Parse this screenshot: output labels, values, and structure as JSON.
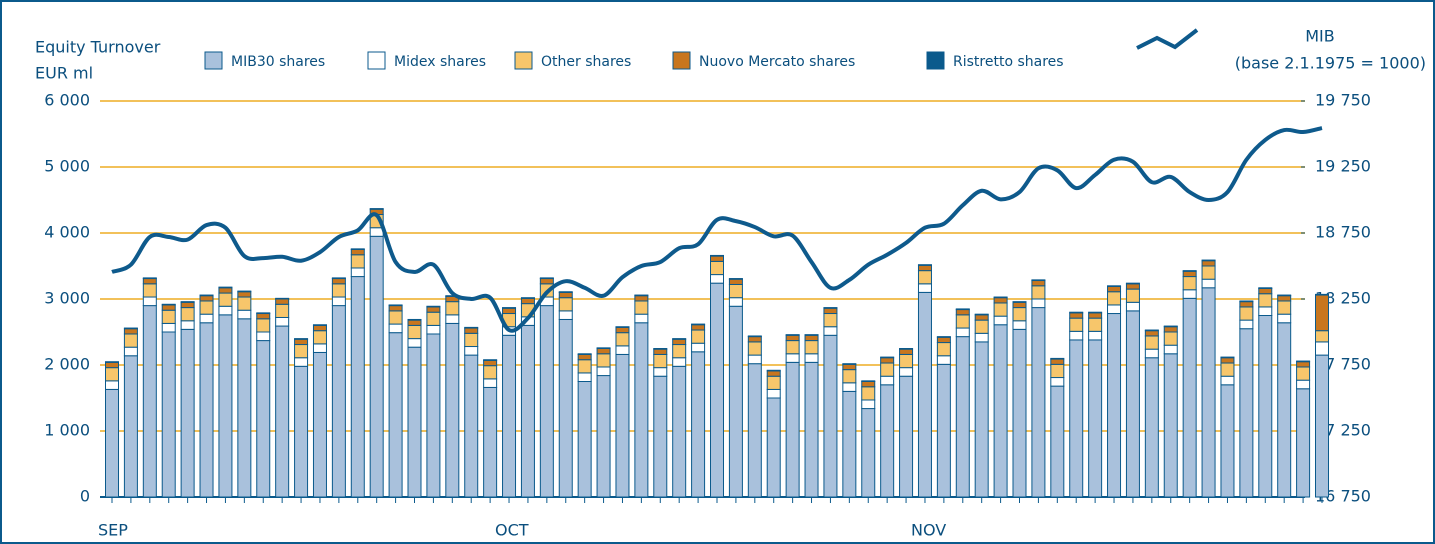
{
  "chart_data": {
    "type": "bar",
    "title": "Equity Turnover",
    "ylabel": "EUR ml",
    "subtitle": "(base 2.1.1975 = 1000)",
    "categories": [
      "SEP",
      null,
      null,
      null,
      null,
      null,
      null,
      null,
      null,
      null,
      null,
      null,
      null,
      null,
      null,
      null,
      null,
      null,
      null,
      null,
      null,
      "OCT",
      null,
      null,
      null,
      null,
      null,
      null,
      null,
      null,
      null,
      null,
      null,
      null,
      null,
      null,
      null,
      null,
      null,
      null,
      null,
      null,
      null,
      "NOV",
      null,
      null,
      null,
      null,
      null,
      null,
      null,
      null,
      null,
      null,
      null,
      null,
      null,
      null,
      null,
      null,
      null,
      null,
      null,
      null,
      null
    ],
    "series": [
      {
        "name": "MIB30 shares",
        "color": "#a9c1dc",
        "values": [
          1630,
          2140,
          2900,
          2500,
          2540,
          2640,
          2760,
          2700,
          2370,
          2590,
          1980,
          2190,
          2900,
          3340,
          3950,
          2490,
          2270,
          2470,
          2630,
          2150,
          1660,
          2450,
          2600,
          2900,
          2690,
          1750,
          1840,
          2160,
          2640,
          1830,
          1980,
          2200,
          3240,
          2890,
          2020,
          1500,
          2040,
          2040,
          2450,
          1600,
          1340,
          1700,
          1830,
          3100,
          2010,
          2430,
          2350,
          2610,
          2540,
          2870,
          1680,
          2380,
          2380,
          2780,
          2820,
          2110,
          2170,
          3010,
          3170,
          1700,
          2550,
          2750,
          2640,
          1640,
          2150
        ]
      },
      {
        "name": "Midex shares",
        "color": "#ffffff",
        "values": [
          130,
          130,
          130,
          130,
          130,
          130,
          130,
          130,
          130,
          130,
          130,
          130,
          130,
          130,
          130,
          130,
          130,
          130,
          130,
          130,
          130,
          130,
          130,
          130,
          130,
          130,
          130,
          130,
          130,
          130,
          130,
          130,
          130,
          130,
          130,
          130,
          130,
          130,
          130,
          130,
          130,
          130,
          130,
          130,
          130,
          130,
          130,
          130,
          130,
          130,
          130,
          130,
          130,
          130,
          130,
          130,
          130,
          130,
          130,
          130,
          130,
          130,
          130,
          130,
          200
        ]
      },
      {
        "name": "Other shares",
        "color": "#f7c66b",
        "values": [
          200,
          200,
          200,
          200,
          200,
          200,
          200,
          200,
          200,
          200,
          200,
          200,
          200,
          200,
          200,
          200,
          200,
          200,
          200,
          200,
          200,
          200,
          200,
          200,
          200,
          200,
          200,
          200,
          200,
          200,
          200,
          200,
          200,
          200,
          200,
          200,
          200,
          200,
          200,
          200,
          200,
          200,
          200,
          200,
          200,
          200,
          200,
          200,
          200,
          200,
          200,
          200,
          200,
          200,
          200,
          200,
          200,
          200,
          200,
          200,
          200,
          200,
          200,
          200,
          170
        ]
      },
      {
        "name": "Nuovo Mercato shares",
        "color": "#c8761e",
        "values": [
          80,
          80,
          80,
          80,
          80,
          80,
          80,
          80,
          80,
          80,
          80,
          80,
          80,
          80,
          80,
          80,
          80,
          80,
          80,
          80,
          80,
          80,
          80,
          80,
          80,
          80,
          80,
          80,
          80,
          80,
          80,
          80,
          80,
          80,
          80,
          80,
          80,
          80,
          80,
          80,
          80,
          80,
          80,
          80,
          80,
          80,
          80,
          80,
          80,
          80,
          80,
          80,
          80,
          80,
          80,
          80,
          80,
          80,
          80,
          80,
          80,
          80,
          80,
          80,
          540
        ]
      },
      {
        "name": "Ristretto shares",
        "color": "#0b5a8c",
        "values": [
          10,
          10,
          10,
          10,
          10,
          10,
          10,
          10,
          10,
          10,
          10,
          10,
          10,
          10,
          10,
          10,
          10,
          10,
          10,
          10,
          10,
          10,
          10,
          10,
          10,
          10,
          10,
          10,
          10,
          10,
          10,
          10,
          10,
          10,
          10,
          10,
          10,
          10,
          10,
          10,
          10,
          10,
          10,
          10,
          10,
          10,
          10,
          10,
          10,
          10,
          10,
          10,
          10,
          10,
          10,
          10,
          10,
          10,
          10,
          10,
          10,
          10,
          10,
          10,
          10
        ]
      },
      {
        "name": "MIB",
        "type": "line",
        "axis": "y2",
        "color": "#0e5a8c",
        "values": [
          18455,
          18510,
          18720,
          18720,
          18700,
          18810,
          18790,
          18575,
          18560,
          18570,
          18540,
          18605,
          18720,
          18770,
          18885,
          18530,
          18455,
          18510,
          18295,
          18250,
          18260,
          18015,
          18105,
          18300,
          18385,
          18335,
          18275,
          18415,
          18500,
          18530,
          18635,
          18665,
          18850,
          18840,
          18795,
          18725,
          18730,
          18530,
          18335,
          18395,
          18510,
          18585,
          18675,
          18790,
          18820,
          18960,
          19070,
          19005,
          19060,
          19240,
          19225,
          19090,
          19190,
          19305,
          19290,
          19135,
          19175,
          19060,
          19000,
          19060,
          19305,
          19455,
          19530,
          19515,
          19545
        ]
      }
    ],
    "ylim": [
      0,
      6000
    ],
    "yticks": [
      0,
      {
        "value": 1000,
        "label": "1 000"
      },
      {
        "value": 2000,
        "label": "2 000"
      },
      {
        "value": 3000,
        "label": "3 000"
      },
      {
        "value": 4000,
        "label": "4 000"
      },
      {
        "value": 5000,
        "label": "5 000"
      },
      {
        "value": 6000,
        "label": "6 000"
      }
    ],
    "y2lim": [
      16750,
      19750
    ],
    "y2ticks": [
      {
        "value": 16750,
        "label": "16 750"
      },
      {
        "value": 17250,
        "label": "17 250"
      },
      {
        "value": 17750,
        "label": "17 750"
      },
      {
        "value": 18250,
        "label": "18 250"
      },
      {
        "value": 18750,
        "label": "18 750"
      },
      {
        "value": 19250,
        "label": "19 250"
      },
      {
        "value": 19750,
        "label": "19 750"
      }
    ],
    "grid": true,
    "grid_color": "#f2c15a"
  }
}
